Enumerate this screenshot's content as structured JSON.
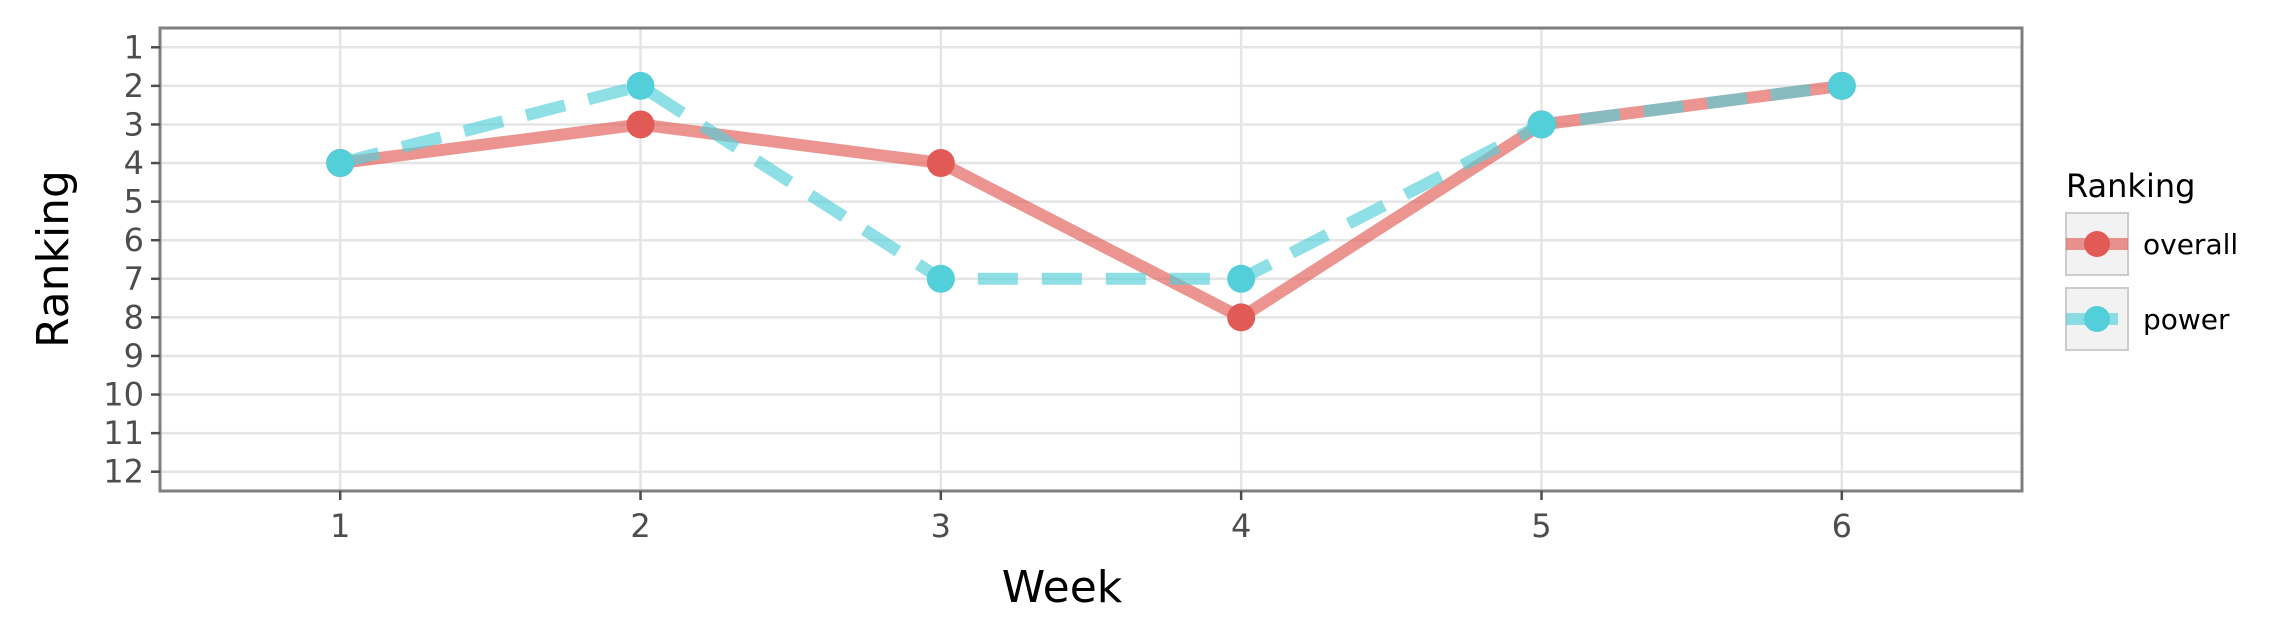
{
  "chart_data": {
    "type": "line",
    "xlabel": "Week",
    "ylabel": "Ranking",
    "x": [
      1,
      2,
      3,
      4,
      5,
      6
    ],
    "xlim": [
      0.4,
      6.6
    ],
    "x_ticks": [
      "1",
      "2",
      "3",
      "4",
      "5",
      "6"
    ],
    "ylim": [
      12.5,
      0.5
    ],
    "y_reversed": true,
    "y_ticks": [
      "1",
      "2",
      "3",
      "4",
      "5",
      "6",
      "7",
      "8",
      "9",
      "10",
      "11",
      "12"
    ],
    "grid": true,
    "legend": {
      "title": "Ranking",
      "placement": "right"
    },
    "series": [
      {
        "name": "overall",
        "values": [
          4,
          3,
          4,
          8,
          3,
          2
        ],
        "color": "#E15A55",
        "line_style": "solid"
      },
      {
        "name": "power",
        "values": [
          4,
          2,
          7,
          7,
          3,
          2
        ],
        "color": "#52CFD9",
        "line_style": "dashed"
      }
    ]
  }
}
